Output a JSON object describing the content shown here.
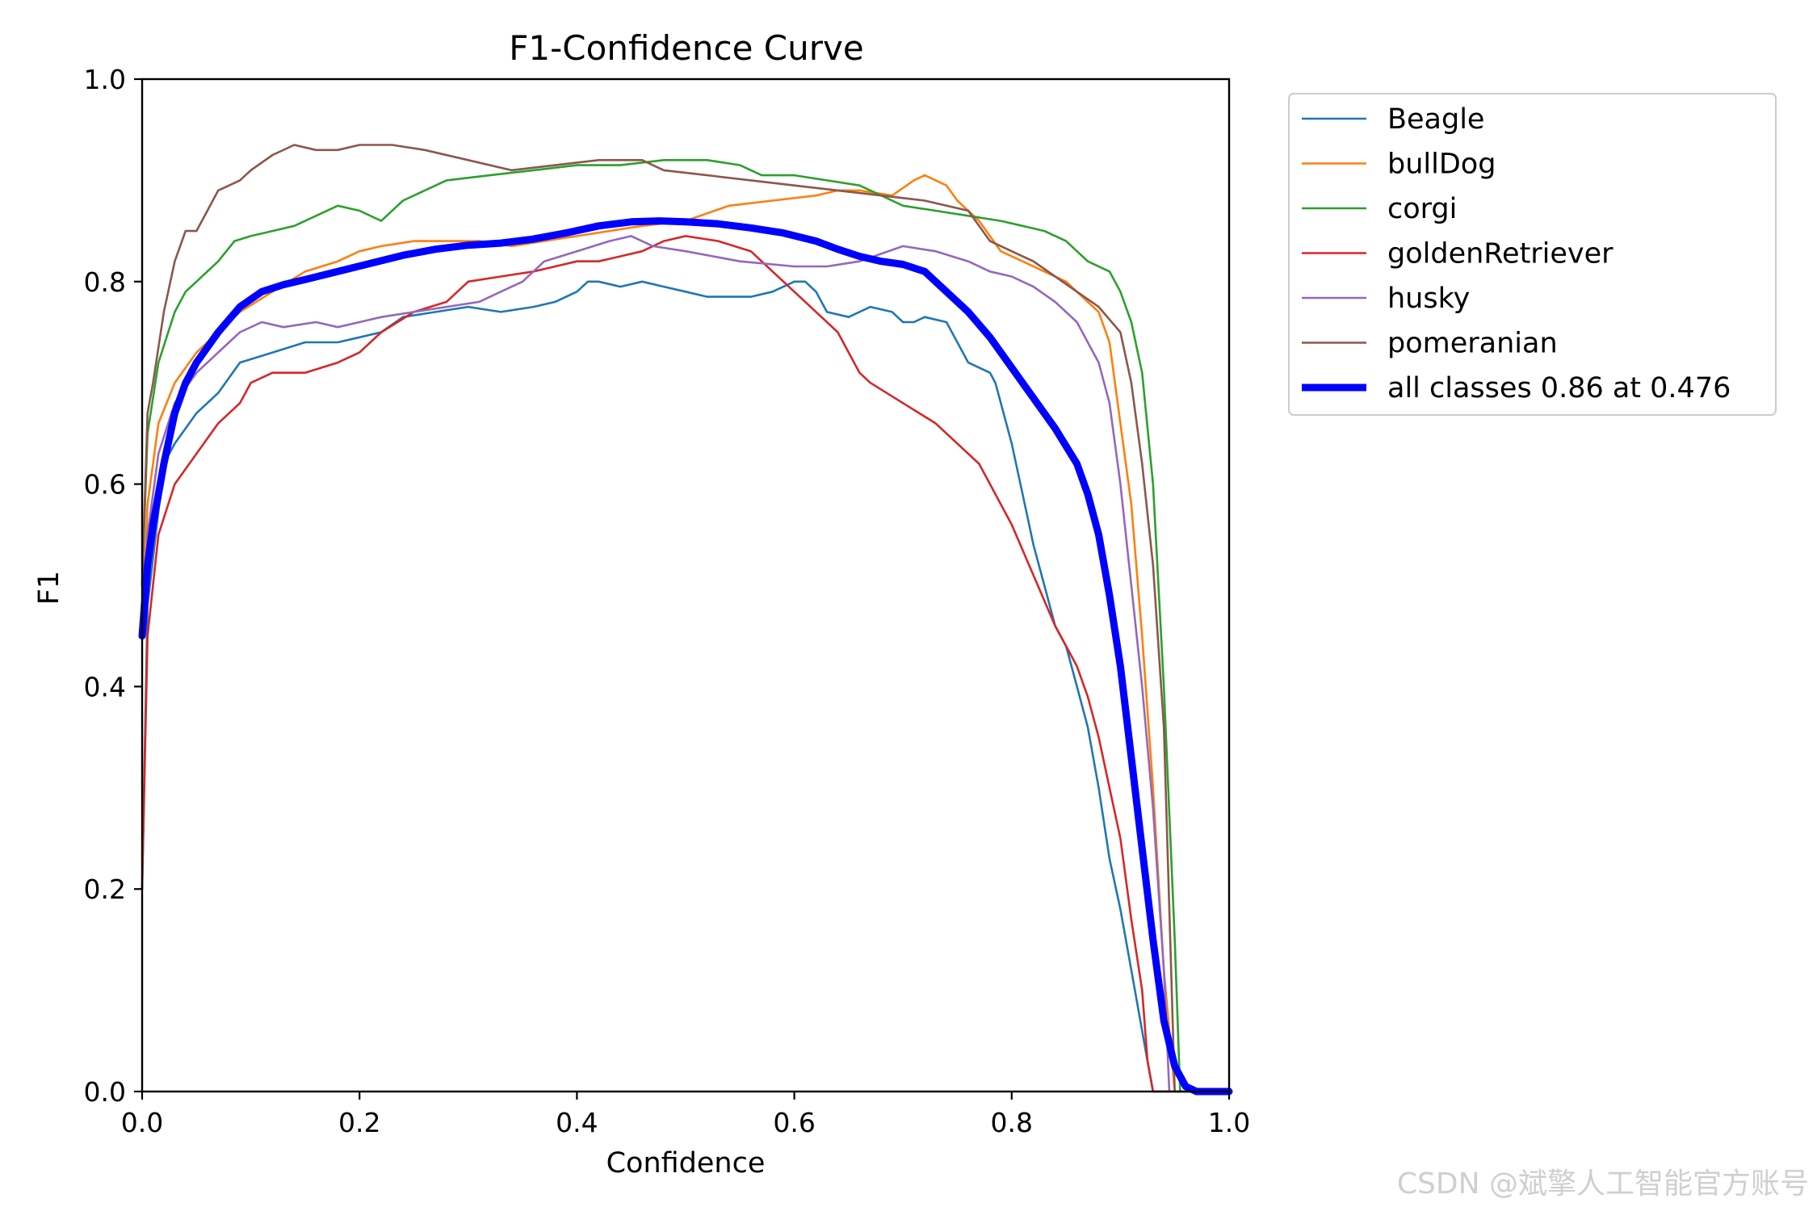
{
  "watermark": "CSDN @斌擎人工智能官方账号",
  "chart_data": {
    "type": "line",
    "title": "F1-Confidence Curve",
    "xlabel": "Confidence",
    "ylabel": "F1",
    "xlim": [
      0.0,
      1.0
    ],
    "ylim": [
      0.0,
      1.0
    ],
    "xticks": [
      "0.0",
      "0.2",
      "0.4",
      "0.6",
      "0.8",
      "1.0"
    ],
    "yticks": [
      "0.0",
      "0.2",
      "0.4",
      "0.6",
      "0.8",
      "1.0"
    ],
    "grid": false,
    "legend_position": "outside-top-right",
    "series": [
      {
        "name": "Beagle",
        "color": "#1f77b4",
        "x": [
          0.0,
          0.005,
          0.02,
          0.03,
          0.05,
          0.07,
          0.09,
          0.12,
          0.15,
          0.18,
          0.2,
          0.22,
          0.24,
          0.27,
          0.3,
          0.33,
          0.36,
          0.38,
          0.4,
          0.41,
          0.42,
          0.44,
          0.46,
          0.48,
          0.5,
          0.52,
          0.54,
          0.56,
          0.58,
          0.6,
          0.61,
          0.62,
          0.63,
          0.65,
          0.67,
          0.69,
          0.7,
          0.71,
          0.72,
          0.74,
          0.75,
          0.76,
          0.78,
          0.785,
          0.8,
          0.81,
          0.82,
          0.83,
          0.84,
          0.85,
          0.86,
          0.87,
          0.88,
          0.89,
          0.9,
          0.91,
          0.92,
          0.925,
          0.93,
          0.932,
          1.0
        ],
        "values": [
          0.2,
          0.48,
          0.62,
          0.64,
          0.67,
          0.69,
          0.72,
          0.73,
          0.74,
          0.74,
          0.745,
          0.75,
          0.765,
          0.77,
          0.775,
          0.77,
          0.775,
          0.78,
          0.79,
          0.8,
          0.8,
          0.795,
          0.8,
          0.795,
          0.79,
          0.785,
          0.785,
          0.785,
          0.79,
          0.8,
          0.8,
          0.79,
          0.77,
          0.765,
          0.775,
          0.77,
          0.76,
          0.76,
          0.765,
          0.76,
          0.74,
          0.72,
          0.71,
          0.7,
          0.64,
          0.59,
          0.54,
          0.5,
          0.46,
          0.44,
          0.4,
          0.36,
          0.3,
          0.23,
          0.18,
          0.12,
          0.06,
          0.03,
          0.0,
          0.0,
          0.0
        ]
      },
      {
        "name": "bullDog",
        "color": "#ff7f0e",
        "x": [
          0.0,
          0.005,
          0.015,
          0.03,
          0.05,
          0.07,
          0.09,
          0.12,
          0.15,
          0.18,
          0.2,
          0.22,
          0.25,
          0.28,
          0.31,
          0.34,
          0.37,
          0.4,
          0.43,
          0.46,
          0.5,
          0.54,
          0.58,
          0.62,
          0.64,
          0.66,
          0.69,
          0.71,
          0.72,
          0.74,
          0.75,
          0.77,
          0.79,
          0.81,
          0.83,
          0.85,
          0.87,
          0.88,
          0.89,
          0.9,
          0.91,
          0.92,
          0.93,
          0.94,
          0.95,
          1.0
        ],
        "values": [
          0.45,
          0.58,
          0.66,
          0.7,
          0.73,
          0.75,
          0.77,
          0.79,
          0.81,
          0.82,
          0.83,
          0.835,
          0.84,
          0.84,
          0.84,
          0.835,
          0.84,
          0.845,
          0.85,
          0.855,
          0.86,
          0.875,
          0.88,
          0.885,
          0.89,
          0.89,
          0.885,
          0.9,
          0.905,
          0.895,
          0.88,
          0.86,
          0.83,
          0.82,
          0.81,
          0.8,
          0.78,
          0.77,
          0.74,
          0.66,
          0.58,
          0.45,
          0.3,
          0.12,
          0.0,
          0.0
        ]
      },
      {
        "name": "corgi",
        "color": "#2ca02c",
        "x": [
          0.0,
          0.005,
          0.015,
          0.03,
          0.04,
          0.05,
          0.07,
          0.085,
          0.1,
          0.12,
          0.14,
          0.16,
          0.18,
          0.2,
          0.22,
          0.24,
          0.26,
          0.28,
          0.32,
          0.36,
          0.4,
          0.44,
          0.48,
          0.52,
          0.55,
          0.57,
          0.6,
          0.63,
          0.66,
          0.68,
          0.7,
          0.73,
          0.76,
          0.79,
          0.81,
          0.83,
          0.85,
          0.87,
          0.89,
          0.9,
          0.91,
          0.92,
          0.93,
          0.94,
          0.95,
          0.955,
          1.0
        ],
        "values": [
          0.5,
          0.65,
          0.72,
          0.77,
          0.79,
          0.8,
          0.82,
          0.84,
          0.845,
          0.85,
          0.855,
          0.865,
          0.875,
          0.87,
          0.86,
          0.88,
          0.89,
          0.9,
          0.905,
          0.91,
          0.915,
          0.915,
          0.92,
          0.92,
          0.915,
          0.905,
          0.905,
          0.9,
          0.895,
          0.885,
          0.875,
          0.87,
          0.865,
          0.86,
          0.855,
          0.85,
          0.84,
          0.82,
          0.81,
          0.79,
          0.76,
          0.71,
          0.6,
          0.4,
          0.15,
          0.0,
          0.0
        ]
      },
      {
        "name": "goldenRetriever",
        "color": "#d62728",
        "x": [
          0.0,
          0.005,
          0.015,
          0.03,
          0.05,
          0.07,
          0.09,
          0.1,
          0.12,
          0.15,
          0.18,
          0.2,
          0.22,
          0.25,
          0.28,
          0.3,
          0.33,
          0.36,
          0.38,
          0.4,
          0.42,
          0.44,
          0.46,
          0.48,
          0.5,
          0.53,
          0.56,
          0.58,
          0.6,
          0.62,
          0.64,
          0.65,
          0.66,
          0.67,
          0.7,
          0.73,
          0.75,
          0.77,
          0.78,
          0.8,
          0.82,
          0.84,
          0.85,
          0.86,
          0.87,
          0.88,
          0.89,
          0.9,
          0.91,
          0.92,
          0.925,
          0.93,
          1.0
        ],
        "values": [
          0.2,
          0.45,
          0.55,
          0.6,
          0.63,
          0.66,
          0.68,
          0.7,
          0.71,
          0.71,
          0.72,
          0.73,
          0.75,
          0.77,
          0.78,
          0.8,
          0.805,
          0.81,
          0.815,
          0.82,
          0.82,
          0.825,
          0.83,
          0.84,
          0.845,
          0.84,
          0.83,
          0.81,
          0.79,
          0.77,
          0.75,
          0.73,
          0.71,
          0.7,
          0.68,
          0.66,
          0.64,
          0.62,
          0.6,
          0.56,
          0.51,
          0.46,
          0.44,
          0.42,
          0.39,
          0.35,
          0.3,
          0.25,
          0.17,
          0.1,
          0.03,
          0.0,
          0.0
        ]
      },
      {
        "name": "husky",
        "color": "#9467bd",
        "x": [
          0.0,
          0.005,
          0.015,
          0.03,
          0.05,
          0.07,
          0.09,
          0.11,
          0.13,
          0.16,
          0.18,
          0.2,
          0.22,
          0.25,
          0.28,
          0.31,
          0.33,
          0.35,
          0.37,
          0.4,
          0.43,
          0.45,
          0.47,
          0.5,
          0.55,
          0.6,
          0.63,
          0.66,
          0.7,
          0.73,
          0.76,
          0.78,
          0.8,
          0.82,
          0.84,
          0.86,
          0.87,
          0.88,
          0.89,
          0.9,
          0.91,
          0.92,
          0.93,
          0.94,
          0.945,
          1.0
        ],
        "values": [
          0.45,
          0.55,
          0.63,
          0.68,
          0.71,
          0.73,
          0.75,
          0.76,
          0.755,
          0.76,
          0.755,
          0.76,
          0.765,
          0.77,
          0.775,
          0.78,
          0.79,
          0.8,
          0.82,
          0.83,
          0.84,
          0.845,
          0.835,
          0.83,
          0.82,
          0.815,
          0.815,
          0.82,
          0.835,
          0.83,
          0.82,
          0.81,
          0.805,
          0.795,
          0.78,
          0.76,
          0.74,
          0.72,
          0.68,
          0.6,
          0.5,
          0.4,
          0.28,
          0.12,
          0.0,
          0.0
        ]
      },
      {
        "name": "pomeranian",
        "color": "#8c564b",
        "x": [
          0.0,
          0.005,
          0.01,
          0.02,
          0.03,
          0.04,
          0.05,
          0.06,
          0.07,
          0.09,
          0.1,
          0.12,
          0.14,
          0.16,
          0.18,
          0.2,
          0.23,
          0.26,
          0.3,
          0.34,
          0.38,
          0.42,
          0.46,
          0.48,
          0.52,
          0.56,
          0.6,
          0.64,
          0.68,
          0.72,
          0.76,
          0.78,
          0.8,
          0.82,
          0.84,
          0.86,
          0.88,
          0.9,
          0.91,
          0.92,
          0.93,
          0.94,
          0.945,
          0.95,
          1.0
        ],
        "values": [
          0.5,
          0.67,
          0.7,
          0.77,
          0.82,
          0.85,
          0.85,
          0.87,
          0.89,
          0.9,
          0.91,
          0.925,
          0.935,
          0.93,
          0.93,
          0.935,
          0.935,
          0.93,
          0.92,
          0.91,
          0.915,
          0.92,
          0.92,
          0.91,
          0.905,
          0.9,
          0.895,
          0.89,
          0.885,
          0.88,
          0.87,
          0.84,
          0.83,
          0.82,
          0.805,
          0.79,
          0.775,
          0.75,
          0.7,
          0.62,
          0.52,
          0.36,
          0.18,
          0.0,
          0.0
        ]
      },
      {
        "name": "all classes 0.86 at 0.476",
        "color": "#0000ff",
        "bold": true,
        "x": [
          0.0,
          0.005,
          0.01,
          0.02,
          0.03,
          0.04,
          0.05,
          0.07,
          0.09,
          0.11,
          0.13,
          0.15,
          0.18,
          0.21,
          0.24,
          0.27,
          0.3,
          0.33,
          0.36,
          0.39,
          0.42,
          0.45,
          0.476,
          0.5,
          0.53,
          0.56,
          0.59,
          0.62,
          0.64,
          0.66,
          0.68,
          0.7,
          0.72,
          0.74,
          0.76,
          0.78,
          0.8,
          0.82,
          0.84,
          0.86,
          0.87,
          0.88,
          0.89,
          0.9,
          0.91,
          0.92,
          0.93,
          0.94,
          0.95,
          0.96,
          0.97,
          0.98,
          1.0
        ],
        "values": [
          0.45,
          0.52,
          0.56,
          0.62,
          0.67,
          0.7,
          0.72,
          0.75,
          0.775,
          0.79,
          0.797,
          0.802,
          0.81,
          0.818,
          0.826,
          0.832,
          0.836,
          0.838,
          0.842,
          0.848,
          0.855,
          0.859,
          0.86,
          0.859,
          0.857,
          0.853,
          0.848,
          0.84,
          0.832,
          0.825,
          0.82,
          0.817,
          0.81,
          0.79,
          0.77,
          0.745,
          0.715,
          0.685,
          0.655,
          0.62,
          0.59,
          0.55,
          0.49,
          0.42,
          0.33,
          0.24,
          0.15,
          0.07,
          0.025,
          0.005,
          0.0,
          0.0,
          0.0
        ]
      }
    ]
  }
}
